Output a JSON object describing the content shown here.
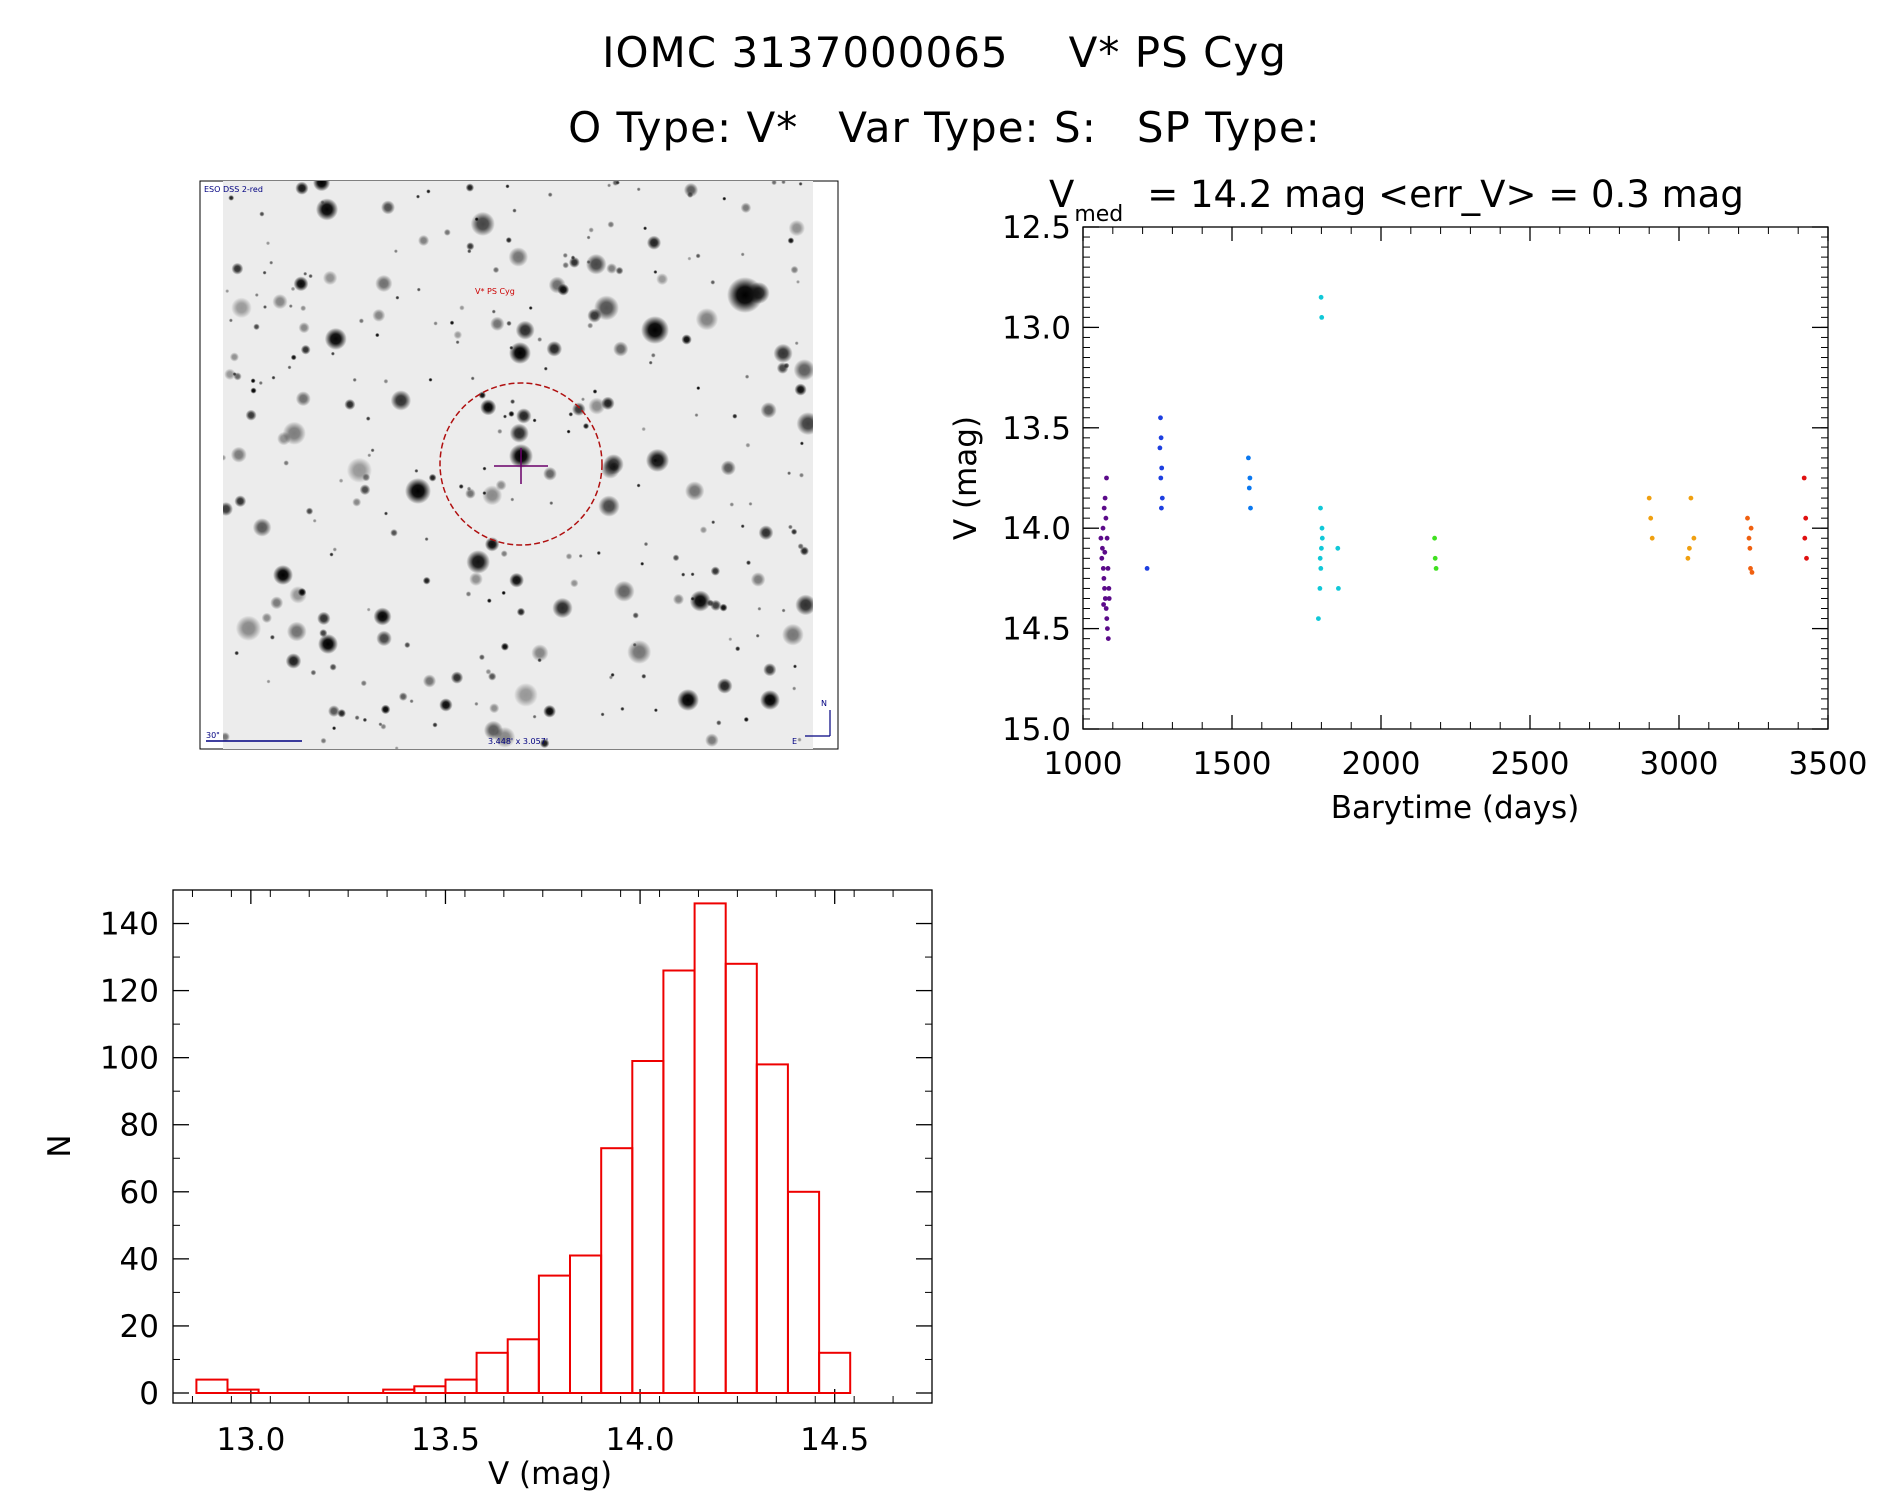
{
  "header": {
    "title_id": "IOMC 3137000065",
    "title_name": "V* PS Cyg",
    "otype": "O Type: V*",
    "vartype": "Var Type: S:",
    "sptype": "SP Type:"
  },
  "sky_image": {
    "survey_label": "ESO DSS 2-red",
    "target_label": "V* PS Cyg",
    "scale_label": "30\"",
    "fov_label": "3.448' x 3.057'",
    "north_label": "N",
    "east_label": "E",
    "colors": {
      "circle": "#b01010",
      "text_red": "#cc0000",
      "text_blue": "#000080",
      "cross": "#6a006a"
    }
  },
  "light_curve": {
    "v_symbol": "V",
    "v_subscript": "med",
    "stats_text": "= 14.2 mag <err_V> = 0.3 mag"
  },
  "chart_data": [
    {
      "type": "scatter",
      "title": "V_med = 14.2 mag <err_V> = 0.3 mag",
      "xlabel": "Barytime (days)",
      "ylabel": "V (mag)",
      "xlim": [
        1000,
        3500
      ],
      "ylim": [
        15.0,
        12.5
      ],
      "y_inverted": true,
      "xticks": [
        "1000",
        "1500",
        "2000",
        "2500",
        "3000",
        "3500"
      ],
      "yticks": [
        "12.5",
        "13.0",
        "13.5",
        "14.0",
        "14.5",
        "15.0"
      ],
      "color_by_time": [
        "#5b0a8a",
        "#1d3fe0",
        "#0a78f0",
        "#10c8d8",
        "#20e890",
        "#40e020",
        "#a8f010",
        "#f0f010",
        "#f0a010",
        "#f06010",
        "#e01010"
      ],
      "series": [
        {
          "name": "seg1",
          "x": [
            1060,
            1065,
            1068,
            1070,
            1072,
            1075,
            1078,
            1080,
            1082,
            1085,
            1088,
            1063,
            1067,
            1071,
            1074,
            1077,
            1081,
            1084,
            1087,
            1069,
            1073,
            1079
          ],
          "y": [
            14.05,
            14.1,
            14.2,
            14.25,
            14.3,
            14.35,
            14.4,
            14.45,
            14.5,
            14.55,
            14.35,
            14.15,
            14.0,
            13.9,
            13.85,
            13.95,
            14.05,
            14.2,
            14.3,
            14.38,
            14.12,
            13.75
          ]
        },
        {
          "name": "seg2",
          "x": [
            1215,
            1260,
            1262,
            1264,
            1266,
            1258,
            1261,
            1263
          ],
          "y": [
            14.2,
            13.45,
            13.55,
            13.7,
            13.85,
            13.6,
            13.75,
            13.9
          ]
        },
        {
          "name": "seg3",
          "x": [
            1555,
            1560,
            1562,
            1558
          ],
          "y": [
            13.65,
            13.75,
            13.9,
            13.8
          ]
        },
        {
          "name": "seg4",
          "x": [
            1790,
            1795,
            1798,
            1800,
            1802,
            1797,
            1799,
            1801,
            1796,
            1803
          ],
          "y": [
            14.45,
            14.3,
            14.2,
            14.1,
            14.0,
            13.9,
            12.85,
            12.95,
            14.15,
            14.05
          ]
        },
        {
          "name": "seg5",
          "x": [
            1855,
            1857,
            2180,
            2182,
            2185
          ],
          "y": [
            14.1,
            14.3,
            14.05,
            14.15,
            14.2
          ]
        },
        {
          "name": "seg6",
          "x": [
            2900,
            2905,
            2910,
            3030,
            3035,
            3040,
            3050
          ],
          "y": [
            13.85,
            13.95,
            14.05,
            14.15,
            14.1,
            13.85,
            14.05
          ]
        },
        {
          "name": "seg7",
          "x": [
            3230,
            3235,
            3240,
            3245,
            3238,
            3242
          ],
          "y": [
            13.95,
            14.05,
            14.2,
            14.22,
            14.1,
            14.0
          ]
        },
        {
          "name": "seg8",
          "x": [
            3420,
            3425,
            3428,
            3422
          ],
          "y": [
            13.75,
            13.95,
            14.15,
            14.05
          ]
        }
      ]
    },
    {
      "type": "bar",
      "xlabel": "V (mag)",
      "ylabel": "N",
      "xlim": [
        12.8,
        14.75
      ],
      "ylim": [
        0,
        150
      ],
      "xticks": [
        "13.0",
        "13.5",
        "14.0",
        "14.5"
      ],
      "yticks": [
        "0",
        "20",
        "40",
        "60",
        "80",
        "100",
        "120",
        "140"
      ],
      "bin_width": 0.08,
      "bin_starts": [
        12.86,
        12.94,
        13.02,
        13.1,
        13.18,
        13.26,
        13.34,
        13.42,
        13.5,
        13.58,
        13.66,
        13.74,
        13.82,
        13.9,
        13.98,
        14.06,
        14.14,
        14.22,
        14.3,
        14.38,
        14.46
      ],
      "values": [
        4,
        1,
        0,
        0,
        0,
        0,
        1,
        2,
        4,
        12,
        16,
        35,
        41,
        73,
        99,
        126,
        146,
        128,
        98,
        60,
        12
      ],
      "bar_edge_color": "#ee0000"
    }
  ]
}
